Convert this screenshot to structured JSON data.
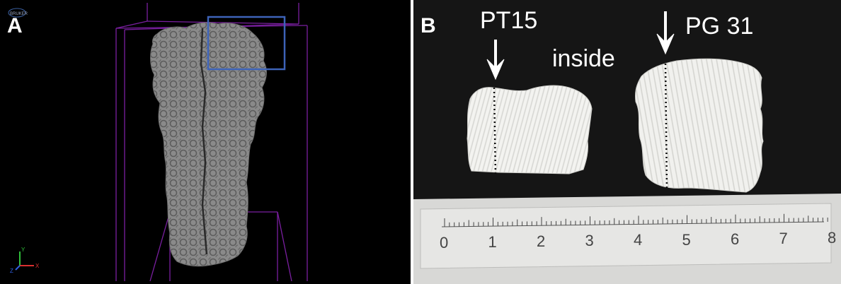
{
  "panel_a": {
    "label": "A",
    "watermark": "BRUKER",
    "axis_labels": {
      "y": "Y",
      "x": "X",
      "z": "Z"
    },
    "colors": {
      "specimen": "#8b8b8b",
      "box_lines": "#7a1fa0",
      "roi": "#3d63b8"
    }
  },
  "panel_b": {
    "label": "B",
    "sample_left": "PT15",
    "sample_right": "PG 31",
    "inside": "inside",
    "ruler_numbers": [
      "0",
      "1",
      "2",
      "3",
      "4",
      "5",
      "6",
      "7",
      "8"
    ]
  }
}
